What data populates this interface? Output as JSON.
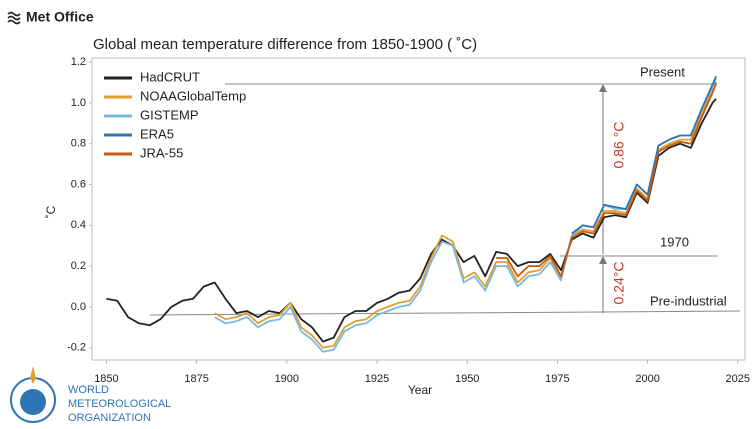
{
  "logos": {
    "met_office": "Met Office",
    "wmo": [
      "WORLD",
      "METEOROLOGICAL",
      "ORGANIZATION"
    ]
  },
  "chart_data": {
    "type": "line",
    "title": "Global mean temperature difference from 1850-1900 ( ˚C)",
    "x_label": "Year",
    "y_label": "˚C",
    "annotations": [
      "Present",
      "1970",
      "Pre-industrial",
      "0.86 °C",
      "0.24°C"
    ],
    "xlim": [
      1846,
      2027
    ],
    "xticks": [
      1850,
      1875,
      1900,
      1925,
      1950,
      1975,
      2000,
      2025
    ],
    "ylim": [
      -0.26,
      1.22
    ],
    "yticks": [
      -0.2,
      {
        "value": 0,
        "label": "0.0"
      },
      0.2,
      0.4,
      0.6,
      0.8,
      {
        "value": 1,
        "label": "1.0"
      },
      1.2
    ],
    "grid": false,
    "legend": "upper left",
    "x": [
      1850,
      1853,
      1856,
      1859,
      1862,
      1865,
      1868,
      1871,
      1874,
      1877,
      1880,
      1883,
      1886,
      1889,
      1892,
      1895,
      1898,
      1901,
      1904,
      1907,
      1910,
      1913,
      1916,
      1919,
      1922,
      1925,
      1928,
      1931,
      1934,
      1937,
      1940,
      1943,
      1946,
      1949,
      1952,
      1955,
      1958,
      1961,
      1964,
      1967,
      1970,
      1973,
      1976,
      1979,
      1982,
      1985,
      1988,
      1991,
      1994,
      1997,
      2000,
      2003,
      2006,
      2009,
      2012,
      2015,
      2018,
      2019
    ],
    "series": [
      {
        "name": "HadCRUT",
        "color": "#222222",
        "values": [
          0.04,
          0.03,
          -0.05,
          -0.08,
          -0.09,
          -0.06,
          0.0,
          0.03,
          0.04,
          0.1,
          0.12,
          0.04,
          -0.03,
          -0.02,
          -0.05,
          -0.02,
          -0.03,
          0.02,
          -0.06,
          -0.1,
          -0.17,
          -0.15,
          -0.05,
          -0.02,
          -0.02,
          0.02,
          0.04,
          0.07,
          0.08,
          0.14,
          0.26,
          0.33,
          0.3,
          0.22,
          0.25,
          0.15,
          0.27,
          0.26,
          0.2,
          0.22,
          0.22,
          0.26,
          0.18,
          0.33,
          0.36,
          0.34,
          0.44,
          0.45,
          0.44,
          0.56,
          0.51,
          0.74,
          0.78,
          0.8,
          0.78,
          0.9,
          1.0,
          1.02
        ]
      },
      {
        "name": "NOAAGlobalTemp",
        "color": "#e0a030",
        "values": [
          null,
          null,
          null,
          null,
          null,
          null,
          null,
          null,
          null,
          null,
          -0.03,
          -0.06,
          -0.05,
          -0.03,
          -0.08,
          -0.05,
          -0.04,
          0.02,
          -0.1,
          -0.14,
          -0.2,
          -0.19,
          -0.1,
          -0.07,
          -0.06,
          -0.02,
          0.0,
          0.02,
          0.03,
          0.1,
          0.24,
          0.35,
          0.32,
          0.14,
          0.17,
          0.1,
          0.22,
          0.22,
          0.12,
          0.17,
          0.18,
          0.24,
          0.14,
          0.35,
          0.38,
          0.37,
          0.47,
          0.47,
          0.46,
          0.58,
          0.53,
          0.77,
          0.8,
          0.82,
          0.82,
          0.95,
          1.06,
          1.09
        ]
      },
      {
        "name": "GISTEMP",
        "color": "#7ab8e0",
        "values": [
          null,
          null,
          null,
          null,
          null,
          null,
          null,
          null,
          null,
          null,
          -0.05,
          -0.08,
          -0.07,
          -0.05,
          -0.1,
          -0.07,
          -0.06,
          0.0,
          -0.12,
          -0.16,
          -0.22,
          -0.21,
          -0.12,
          -0.09,
          -0.08,
          -0.04,
          -0.02,
          0.0,
          0.01,
          0.08,
          0.22,
          0.32,
          0.3,
          0.12,
          0.15,
          0.08,
          0.2,
          0.2,
          0.1,
          0.15,
          0.16,
          0.22,
          0.13,
          0.35,
          0.4,
          0.39,
          0.5,
          0.48,
          0.48,
          0.6,
          0.55,
          0.79,
          0.82,
          0.84,
          0.84,
          0.97,
          1.08,
          1.12
        ]
      },
      {
        "name": "ERA5",
        "color": "#2e75b6",
        "values": [
          null,
          null,
          null,
          null,
          null,
          null,
          null,
          null,
          null,
          null,
          null,
          null,
          null,
          null,
          null,
          null,
          null,
          null,
          null,
          null,
          null,
          null,
          null,
          null,
          null,
          null,
          null,
          null,
          null,
          null,
          null,
          null,
          null,
          null,
          null,
          null,
          null,
          null,
          null,
          null,
          null,
          null,
          null,
          0.36,
          0.4,
          0.39,
          0.5,
          0.49,
          0.48,
          0.6,
          0.55,
          0.79,
          0.82,
          0.84,
          0.84,
          0.97,
          1.09,
          1.13
        ]
      },
      {
        "name": "JRA-55",
        "color": "#c55a11",
        "values": [
          null,
          null,
          null,
          null,
          null,
          null,
          null,
          null,
          null,
          null,
          null,
          null,
          null,
          null,
          null,
          null,
          null,
          null,
          null,
          null,
          null,
          null,
          null,
          null,
          null,
          null,
          null,
          null,
          null,
          null,
          null,
          null,
          null,
          null,
          null,
          null,
          0.24,
          0.24,
          0.15,
          0.2,
          0.2,
          0.25,
          0.15,
          0.34,
          0.37,
          0.36,
          0.46,
          0.46,
          0.45,
          0.57,
          0.52,
          0.76,
          0.79,
          0.81,
          0.8,
          0.93,
          1.05,
          1.1
        ]
      }
    ]
  }
}
